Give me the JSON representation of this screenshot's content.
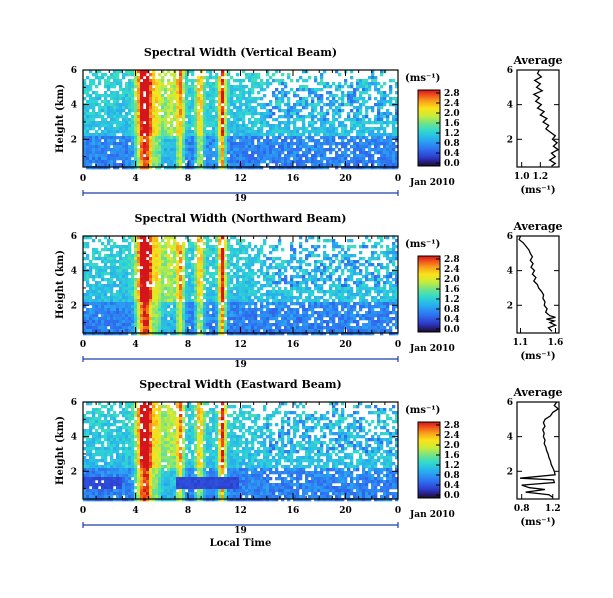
{
  "chart_data": [
    {
      "type": "heatmap",
      "title": "Spectral Width (Vertical Beam)",
      "ylabel": "Height (km)",
      "y_tick_labels": [
        "6",
        "4",
        "2"
      ],
      "x_tick_labels": [
        "0",
        "4",
        "8",
        "12",
        "16",
        "20",
        "0"
      ],
      "date_day": "19",
      "date_label": "Jan 2010",
      "xlim": [
        0,
        24
      ],
      "ylim": [
        0.4,
        6
      ],
      "colorbar": {
        "unit": "(ms⁻¹)",
        "labels": [
          "2.8",
          "2.4",
          "2.0",
          "1.6",
          "1.2",
          "0.8",
          "0.4",
          "0.0"
        ],
        "range": [
          0.0,
          2.8
        ]
      },
      "average": {
        "title": "Average",
        "xlabel": "(ms⁻¹)",
        "x_tick_labels": [
          "1.0",
          "1.2"
        ],
        "y_tick_labels": [
          "6",
          "4",
          "2"
        ],
        "xlim": [
          0.95,
          1.4
        ],
        "ylim": [
          0.4,
          6
        ],
        "profile": [
          [
            1.19,
            6.0
          ],
          [
            1.17,
            5.8
          ],
          [
            1.21,
            5.6
          ],
          [
            1.14,
            5.4
          ],
          [
            1.2,
            5.2
          ],
          [
            1.16,
            5.0
          ],
          [
            1.22,
            4.8
          ],
          [
            1.13,
            4.6
          ],
          [
            1.19,
            4.4
          ],
          [
            1.15,
            4.2
          ],
          [
            1.21,
            4.0
          ],
          [
            1.17,
            3.8
          ],
          [
            1.24,
            3.6
          ],
          [
            1.2,
            3.4
          ],
          [
            1.27,
            3.2
          ],
          [
            1.23,
            3.0
          ],
          [
            1.29,
            2.8
          ],
          [
            1.26,
            2.6
          ],
          [
            1.31,
            2.4
          ],
          [
            1.36,
            2.2
          ],
          [
            1.33,
            2.0
          ],
          [
            1.38,
            1.8
          ],
          [
            1.34,
            1.6
          ],
          [
            1.39,
            1.4
          ],
          [
            1.32,
            1.2
          ],
          [
            1.36,
            1.0
          ],
          [
            1.3,
            0.8
          ],
          [
            1.36,
            0.6
          ],
          [
            1.32,
            0.45
          ]
        ]
      }
    },
    {
      "type": "heatmap",
      "title": "Spectral Width (Northward Beam)",
      "ylabel": "Height (km)",
      "y_tick_labels": [
        "6",
        "4",
        "2"
      ],
      "x_tick_labels": [
        "0",
        "4",
        "8",
        "12",
        "16",
        "20",
        "0"
      ],
      "date_day": "19",
      "date_label": "Jan 2010",
      "xlim": [
        0,
        24
      ],
      "ylim": [
        0.4,
        6
      ],
      "colorbar": {
        "unit": "(ms⁻¹)",
        "labels": [
          "2.8",
          "2.4",
          "2.0",
          "1.6",
          "1.2",
          "0.8",
          "0.4",
          "0.0"
        ],
        "range": [
          0.0,
          2.8
        ]
      },
      "average": {
        "title": "Average",
        "xlabel": "(ms⁻¹)",
        "x_tick_labels": [
          "1.1",
          "1.6"
        ],
        "y_tick_labels": [
          "6",
          "4",
          "2"
        ],
        "xlim": [
          1.05,
          1.65
        ],
        "ylim": [
          0.4,
          6
        ],
        "profile": [
          [
            1.1,
            6.0
          ],
          [
            1.08,
            5.8
          ],
          [
            1.14,
            5.6
          ],
          [
            1.18,
            5.4
          ],
          [
            1.22,
            5.2
          ],
          [
            1.24,
            5.0
          ],
          [
            1.27,
            4.8
          ],
          [
            1.24,
            4.6
          ],
          [
            1.28,
            4.4
          ],
          [
            1.25,
            4.2
          ],
          [
            1.3,
            4.0
          ],
          [
            1.27,
            3.8
          ],
          [
            1.32,
            3.6
          ],
          [
            1.29,
            3.4
          ],
          [
            1.34,
            3.2
          ],
          [
            1.36,
            3.0
          ],
          [
            1.4,
            2.8
          ],
          [
            1.43,
            2.6
          ],
          [
            1.42,
            2.4
          ],
          [
            1.45,
            2.2
          ],
          [
            1.44,
            2.0
          ],
          [
            1.48,
            1.8
          ],
          [
            1.46,
            1.6
          ],
          [
            1.52,
            1.4
          ],
          [
            1.6,
            1.3
          ],
          [
            1.47,
            1.2
          ],
          [
            1.58,
            1.1
          ],
          [
            1.52,
            1.0
          ],
          [
            1.6,
            0.85
          ],
          [
            1.5,
            0.7
          ],
          [
            1.55,
            0.5
          ]
        ]
      }
    },
    {
      "type": "heatmap",
      "title": "Spectral Width (Eastward Beam)",
      "ylabel": "Height (km)",
      "y_tick_labels": [
        "6",
        "4",
        "2"
      ],
      "x_tick_labels": [
        "0",
        "4",
        "8",
        "12",
        "16",
        "20",
        "0"
      ],
      "date_day": "19",
      "date_label": "Jan 2010",
      "xlabel": "Local Time",
      "xlim": [
        0,
        24
      ],
      "ylim": [
        0.4,
        6
      ],
      "colorbar": {
        "unit": "(ms⁻¹)",
        "labels": [
          "2.8",
          "2.4",
          "2.0",
          "1.6",
          "1.2",
          "0.8",
          "0.4",
          "0.0"
        ],
        "range": [
          0.0,
          2.8
        ]
      },
      "average": {
        "title": "Average",
        "xlabel": "(ms⁻¹)",
        "x_tick_labels": [
          "0.8",
          "1.2"
        ],
        "y_tick_labels": [
          "6",
          "4",
          "2"
        ],
        "xlim": [
          0.74,
          1.28
        ],
        "ylim": [
          0.4,
          6
        ],
        "profile": [
          [
            1.25,
            6.0
          ],
          [
            1.22,
            5.8
          ],
          [
            1.27,
            5.6
          ],
          [
            1.2,
            5.4
          ],
          [
            1.17,
            5.2
          ],
          [
            1.1,
            5.0
          ],
          [
            1.08,
            4.8
          ],
          [
            1.1,
            4.6
          ],
          [
            1.07,
            4.4
          ],
          [
            1.09,
            4.2
          ],
          [
            1.08,
            4.0
          ],
          [
            1.1,
            3.8
          ],
          [
            1.09,
            3.6
          ],
          [
            1.11,
            3.4
          ],
          [
            1.12,
            3.2
          ],
          [
            1.14,
            3.0
          ],
          [
            1.15,
            2.8
          ],
          [
            1.17,
            2.6
          ],
          [
            1.18,
            2.4
          ],
          [
            1.2,
            2.2
          ],
          [
            1.22,
            2.0
          ],
          [
            1.23,
            1.8
          ],
          [
            0.78,
            1.6
          ],
          [
            1.21,
            1.5
          ],
          [
            1.22,
            1.35
          ],
          [
            0.8,
            1.2
          ],
          [
            0.9,
            1.05
          ],
          [
            1.1,
            0.95
          ],
          [
            0.85,
            0.8
          ],
          [
            1.15,
            0.65
          ],
          [
            1.2,
            0.5
          ]
        ]
      }
    }
  ]
}
